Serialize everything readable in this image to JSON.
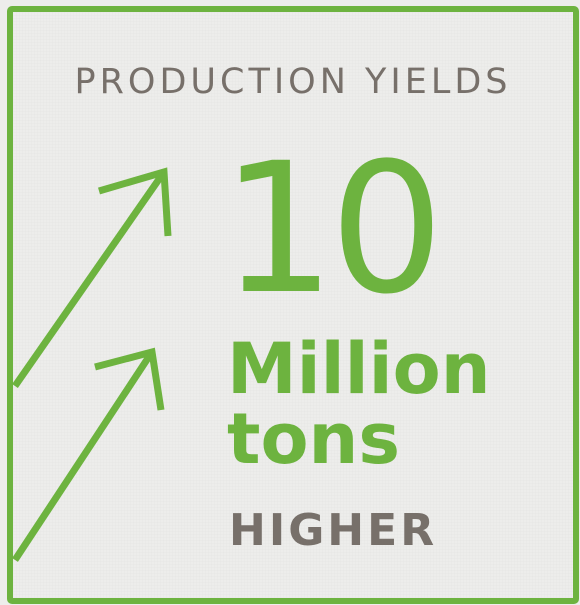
{
  "card": {
    "title": "PRODUCTION YIELDS",
    "value": "10",
    "unit_line1": "Million",
    "unit_line2": "tons",
    "qualifier": "HIGHER"
  },
  "icons": [
    "arrow-up-right-icon",
    "arrow-up-right-icon"
  ],
  "colors": {
    "accent": "#6db33f",
    "text_muted": "#77706a",
    "background": "#ededeb"
  }
}
